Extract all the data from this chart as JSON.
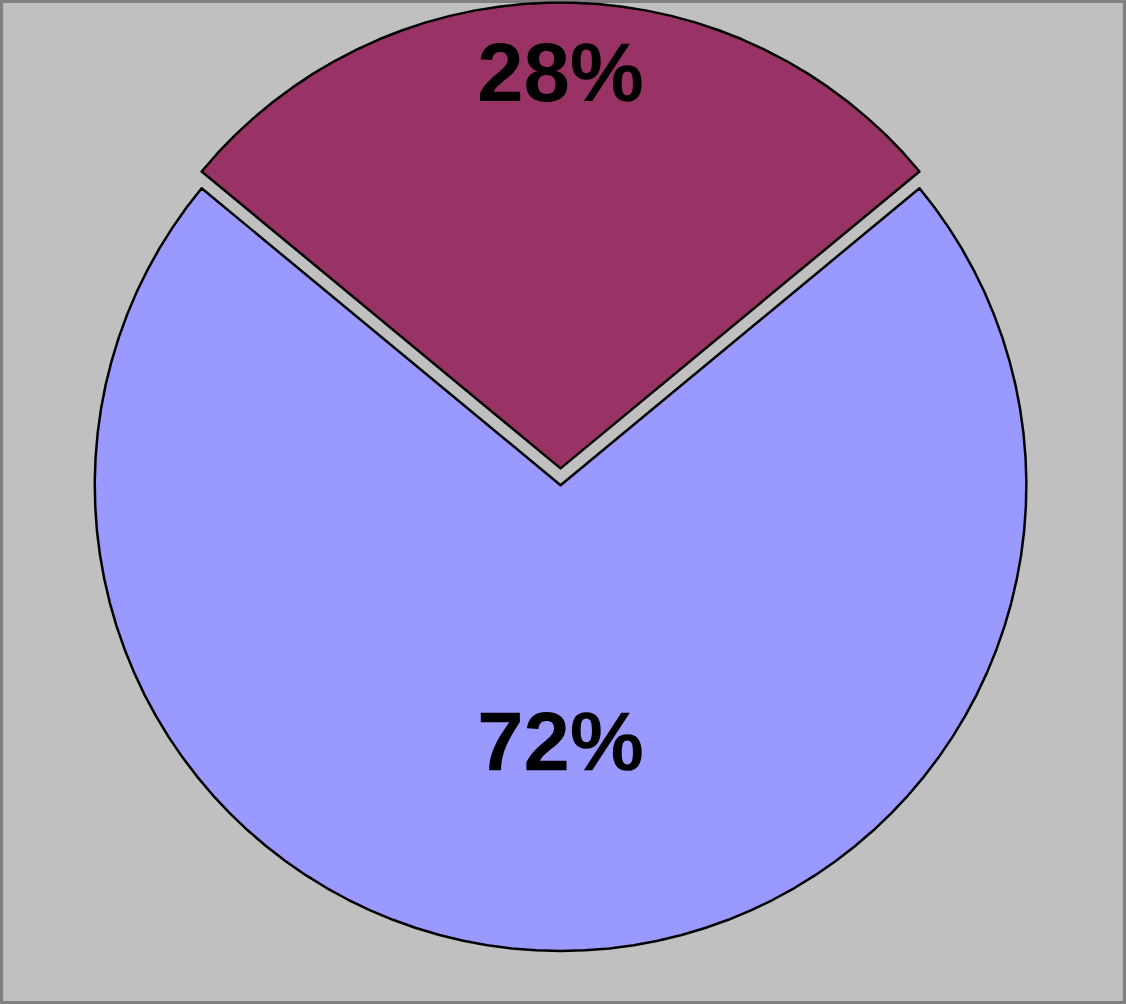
{
  "chart_data": {
    "type": "pie",
    "categories": [
      null,
      null
    ],
    "values": [
      72,
      28
    ],
    "colors": [
      "#9999ff",
      "#993366"
    ],
    "value_labels": [
      "72%",
      "28%"
    ]
  }
}
